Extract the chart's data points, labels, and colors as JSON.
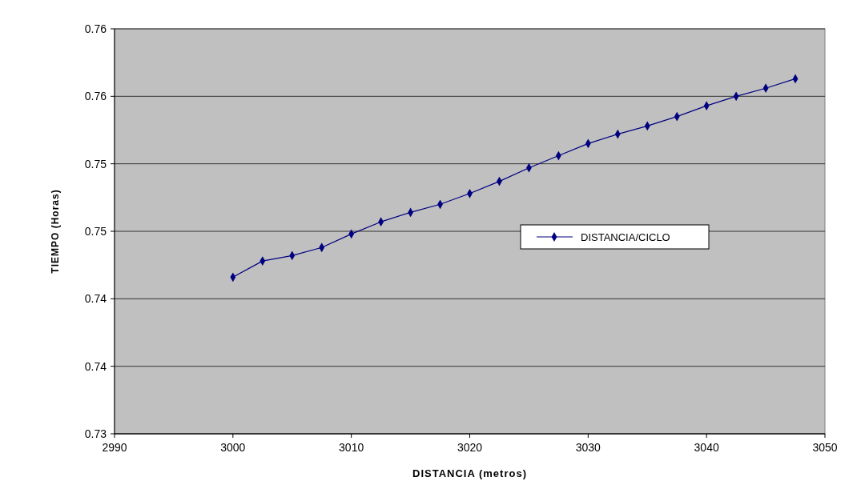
{
  "chart_data": {
    "type": "line",
    "xlabel": "DISTANCIA (metros)",
    "ylabel": "TIEMPO (Horas)",
    "x": [
      3000,
      3002.5,
      3005,
      3007.5,
      3010,
      3012.5,
      3015,
      3017.5,
      3020,
      3022.5,
      3025,
      3027.5,
      3030,
      3032.5,
      3035,
      3037.5,
      3040,
      3042.5,
      3045,
      3047.5
    ],
    "series": [
      {
        "name": "DISTANCIA/CICLO",
        "color": "#000080",
        "values": [
          0.7416,
          0.7428,
          0.7432,
          0.7438,
          0.7448,
          0.7457,
          0.7464,
          0.747,
          0.7478,
          0.7487,
          0.7497,
          0.7506,
          0.7515,
          0.7522,
          0.7528,
          0.7535,
          0.7543,
          0.755,
          0.7556,
          0.7563
        ]
      }
    ],
    "xlim": [
      2990,
      3050
    ],
    "xticks": [
      2990,
      3000,
      3010,
      3020,
      3030,
      3040,
      3050
    ],
    "ylim": [
      0.73,
      0.76
    ],
    "yticks": [
      {
        "value": 0.73,
        "label": "0.73"
      },
      {
        "value": 0.735,
        "label": "0.74"
      },
      {
        "value": 0.74,
        "label": "0.74"
      },
      {
        "value": 0.745,
        "label": "0.75"
      },
      {
        "value": 0.75,
        "label": "0.75"
      },
      {
        "value": 0.755,
        "label": "0.76"
      },
      {
        "value": 0.76,
        "label": "0.76"
      }
    ],
    "grid": "y",
    "legend": "right",
    "marker": "diamond",
    "line_style": "solid"
  }
}
